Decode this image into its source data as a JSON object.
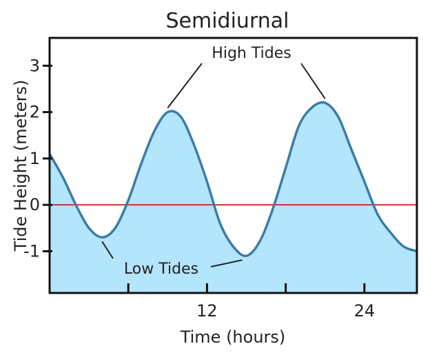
{
  "chart_data": {
    "type": "area",
    "title": "Semidiurnal",
    "xlabel": "Time (hours)",
    "ylabel": "Tide Height (meters)",
    "xlim": [
      0,
      28
    ],
    "ylim": [
      -1.9,
      3.6
    ],
    "x_ticks": [
      6,
      12,
      18,
      24
    ],
    "x_tick_labels": [
      "",
      "12",
      "",
      "24"
    ],
    "y_ticks": [
      3,
      2,
      1,
      0,
      -1
    ],
    "y_tick_labels": [
      "3",
      "2",
      "1",
      "0",
      "-1"
    ],
    "grid": false,
    "series": [
      {
        "x": [
          0,
          1,
          2,
          3,
          4,
          5,
          6,
          7,
          8,
          9,
          10,
          11,
          12,
          13,
          14,
          15,
          16,
          17,
          18,
          19,
          20,
          21,
          22,
          23,
          24,
          25,
          26,
          27,
          28
        ],
        "values": [
          1.1,
          0.6,
          0.0,
          -0.5,
          -0.7,
          -0.5,
          0.1,
          0.9,
          1.6,
          2.0,
          1.9,
          1.3,
          0.5,
          -0.4,
          -0.9,
          -1.1,
          -0.8,
          -0.1,
          0.8,
          1.7,
          2.1,
          2.2,
          1.9,
          1.2,
          0.5,
          -0.2,
          -0.6,
          -0.9,
          -1.0
        ]
      }
    ],
    "reference_line": {
      "y": 0,
      "color": "#cc3333"
    },
    "annotations": [
      {
        "text": "High Tides",
        "points": [
          [
            9,
            2.0
          ],
          [
            21,
            2.2
          ]
        ]
      },
      {
        "text": "Low Tides",
        "points": [
          [
            4,
            -0.7
          ],
          [
            15,
            -1.1
          ]
        ]
      }
    ],
    "colors": {
      "fill": "#b3e5fc",
      "line": "#3a7ca5",
      "frame": "#111111"
    }
  }
}
